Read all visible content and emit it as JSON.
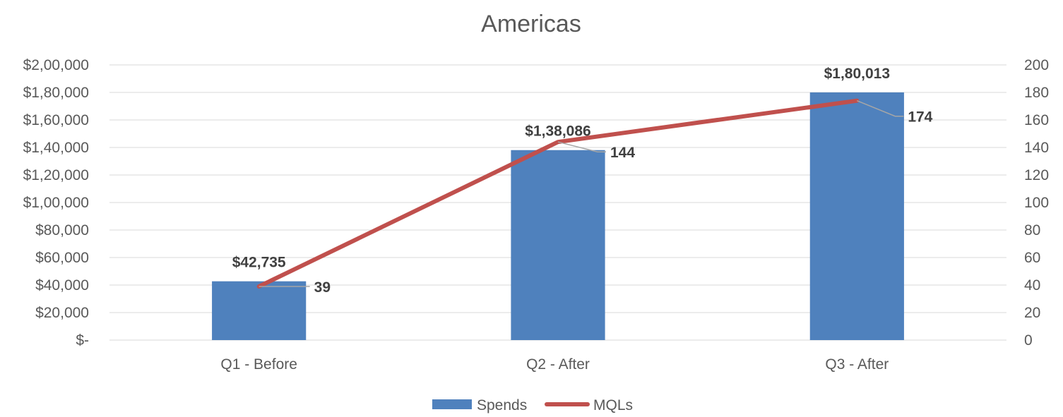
{
  "chart_data": {
    "type": "bar",
    "title": "Americas",
    "categories": [
      "Q1 - Before",
      "Q2 - After",
      "Q3 - After"
    ],
    "series": [
      {
        "name": "Spends",
        "type": "bar",
        "axis": "left",
        "values": [
          42735,
          138086,
          180013
        ],
        "labels": [
          "$42,735",
          "$1,38,086",
          "$1,80,013"
        ],
        "color": "#4f81bd"
      },
      {
        "name": "MQLs",
        "type": "line",
        "axis": "right",
        "values": [
          39,
          144,
          174
        ],
        "labels": [
          "39",
          "144",
          "174"
        ],
        "color": "#c0504d"
      }
    ],
    "y_left": {
      "ylim": [
        0,
        200000
      ],
      "ticks": [
        0,
        20000,
        40000,
        60000,
        80000,
        100000,
        120000,
        140000,
        160000,
        180000,
        200000
      ],
      "tick_labels": [
        "$-",
        "$20,000",
        "$40,000",
        "$60,000",
        "$80,000",
        "$1,00,000",
        "$1,20,000",
        "$1,40,000",
        "$1,60,000",
        "$1,80,000",
        "$2,00,000"
      ]
    },
    "y_right": {
      "ylim": [
        0,
        200
      ],
      "ticks": [
        0,
        20,
        40,
        60,
        80,
        100,
        120,
        140,
        160,
        180,
        200
      ],
      "tick_labels": [
        "0",
        "20",
        "40",
        "60",
        "80",
        "100",
        "120",
        "140",
        "160",
        "180",
        "200"
      ]
    },
    "grid": true,
    "legend": {
      "position": "bottom",
      "entries": [
        "Spends",
        "MQLs"
      ]
    }
  }
}
